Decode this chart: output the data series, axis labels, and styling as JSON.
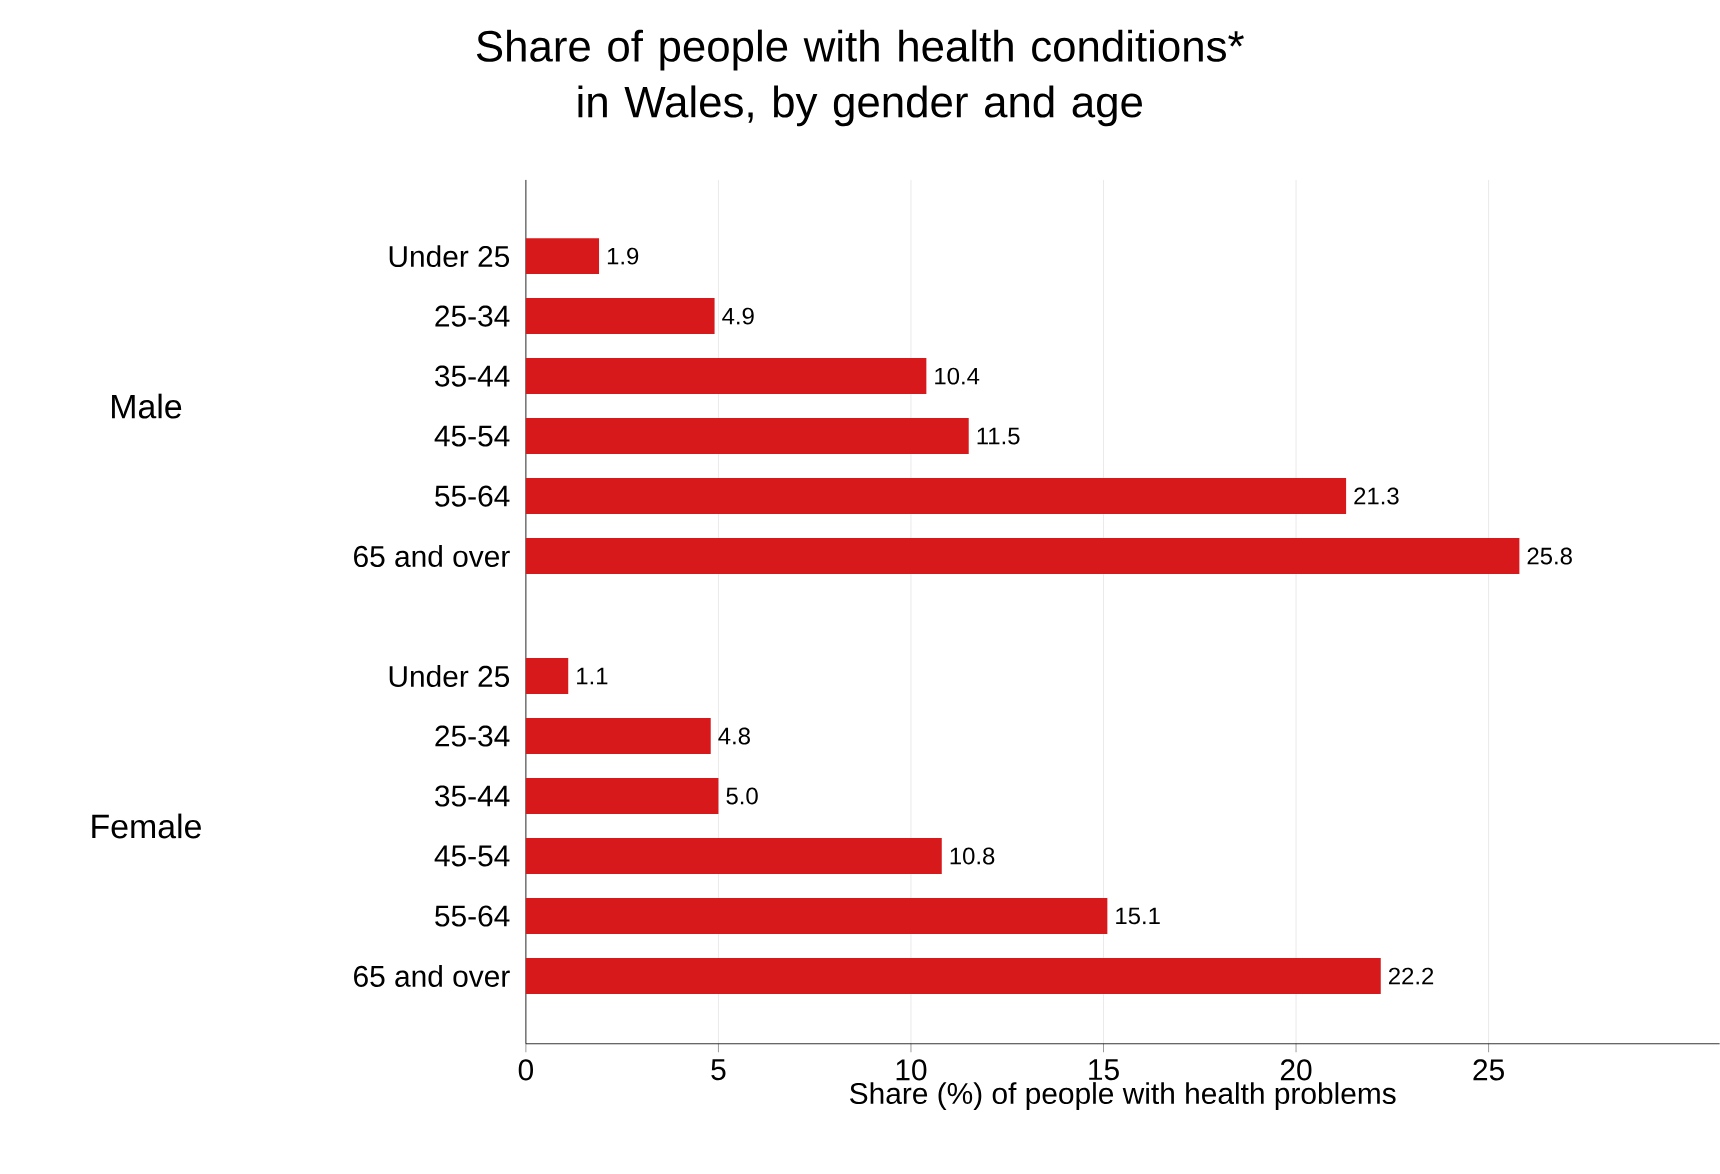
{
  "chart_data": {
    "type": "bar",
    "orientation": "horizontal",
    "title": "Share of people with health conditions* in Wales, by gender and age",
    "xlabel": "Share (%) of people with health problems",
    "categories": [
      "Under 25",
      "25-34",
      "35-44",
      "45-54",
      "55-64",
      "65 and over",
      null,
      "Under 25",
      "25-34",
      "35-44",
      "45-54",
      "55-64",
      "65 and over"
    ],
    "values": [
      1.9,
      4.9,
      10.4,
      11.5,
      21.3,
      25.8,
      null,
      1.1,
      4.8,
      5.0,
      10.8,
      15.1,
      22.2
    ],
    "value_labels": [
      "1.9",
      "4.9",
      "10.4",
      "11.5",
      "21.3",
      "25.8",
      null,
      "1.1",
      "4.8",
      "5.0",
      "10.8",
      "15.1",
      "22.2"
    ],
    "color": "#d7191c",
    "annotations": [
      "Male",
      "Female"
    ],
    "xlim": [
      0,
      31
    ],
    "xticks": [
      0,
      5,
      10,
      15,
      20,
      25
    ],
    "grid": "x"
  }
}
